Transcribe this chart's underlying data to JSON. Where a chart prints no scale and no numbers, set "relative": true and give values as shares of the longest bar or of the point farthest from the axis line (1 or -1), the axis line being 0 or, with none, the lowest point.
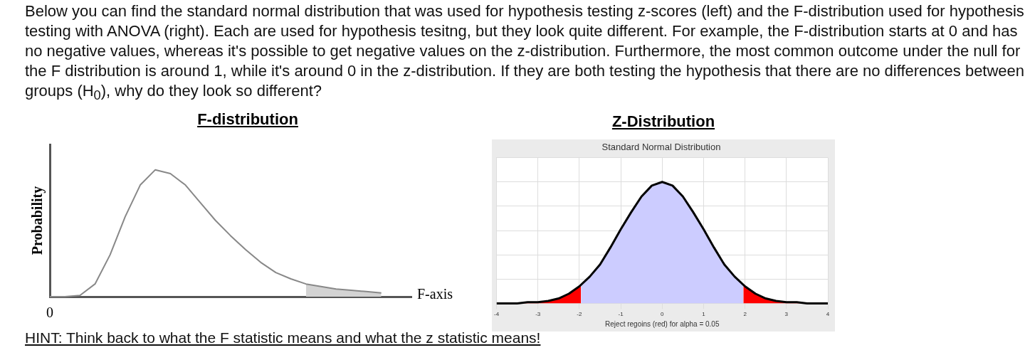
{
  "chart_data": [
    {
      "type": "line",
      "title": "F-distribution",
      "ylabel": "Probability",
      "xlabel": "F-axis",
      "relative": true,
      "grid": false,
      "legend": false,
      "categories": [
        null,
        null,
        null,
        null,
        null,
        null,
        null,
        null,
        null,
        null,
        null,
        null,
        null,
        null,
        null,
        null,
        null,
        null,
        null,
        null,
        null,
        null,
        null,
        null,
        null
      ],
      "series": [
        {
          "type": "area",
          "color": "#d3d3d3",
          "values": [
            null,
            null,
            null,
            null,
            null,
            null,
            null,
            null,
            null,
            null,
            null,
            null,
            null,
            null,
            null,
            null,
            null,
            0.1,
            0.08,
            0.06,
            0.05,
            0.04,
            0.03,
            null,
            null
          ]
        },
        {
          "color": "#888888",
          "values": [
            0,
            0,
            0.01,
            0.1,
            0.33,
            0.63,
            0.88,
            1,
            0.97,
            0.88,
            0.74,
            0.6,
            0.48,
            0.37,
            0.27,
            0.19,
            0.14,
            0.1,
            0.08,
            0.06,
            0.05,
            0.04,
            0.03,
            null,
            null
          ]
        }
      ],
      "annotations": [
        "Below you can find the standard normal distribution that was used for hypothesis testing z-scores (left) and the F-distribution used for hypothesis testing with ANOVA (right). Each are used for hypothesis tesitng, but they look quite different. For example, the F-distribution starts at 0 and has no negative values, whereas it's possible to get negative values on the z-distribution. Furthermore, the most common outcome under the null for the F distribution is around 1, while it's around 0 in the z-distribution. If they are both testing the hypothesis that there are no differences between groups (H$_{0}$), why do they look so different?",
        "0",
        "HINT: Think back to what the F statistic means and what the z statistic means!"
      ]
    },
    {
      "type": "line",
      "title": "Z-Distribution",
      "subtitle": "Standard Normal Distribution",
      "xlabel": "Reject regoins (red) for alpha = 0.05",
      "relative": true,
      "grid": true,
      "legend": false,
      "xlim": [
        -4,
        4
      ],
      "xticks": [
        -4,
        -3,
        -2,
        -1,
        0,
        1,
        2,
        3,
        4
      ],
      "series": [
        {
          "type": "area",
          "color": "#ccccff",
          "x": [
            -1.96,
            -1.75,
            -1.5,
            -1.25,
            -1,
            -0.75,
            -0.5,
            -0.25,
            0,
            0.25,
            0.5,
            0.75,
            1,
            1.25,
            1.5,
            1.75,
            1.96
          ],
          "values": [
            0.15,
            0.22,
            0.32,
            0.46,
            0.61,
            0.75,
            0.88,
            0.97,
            1,
            0.97,
            0.88,
            0.75,
            0.61,
            0.46,
            0.32,
            0.22,
            0.15
          ]
        },
        {
          "type": "area",
          "color": "#ff0000",
          "x": [
            -4,
            -3.75,
            -3.5,
            -3.25,
            -3,
            -2.75,
            -2.5,
            -2.25,
            -2,
            -1.96
          ],
          "values": [
            0,
            0,
            0,
            0.01,
            0.01,
            0.02,
            0.04,
            0.08,
            0.14,
            0.15
          ]
        },
        {
          "type": "area",
          "color": "#ff0000",
          "x": [
            1.96,
            2,
            2.25,
            2.5,
            2.75,
            3,
            3.25,
            3.5,
            3.75,
            4
          ],
          "values": [
            0.15,
            0.14,
            0.08,
            0.04,
            0.02,
            0.01,
            0.01,
            0,
            0,
            0
          ]
        },
        {
          "color": "#000000",
          "x": [
            -4,
            -3.75,
            -3.5,
            -3.25,
            -3,
            -2.75,
            -2.5,
            -2.25,
            -2,
            -1.75,
            -1.5,
            -1.25,
            -1,
            -0.75,
            -0.5,
            -0.25,
            0,
            0.25,
            0.5,
            0.75,
            1,
            1.25,
            1.5,
            1.75,
            2,
            2.25,
            2.5,
            2.75,
            3,
            3.25,
            3.5,
            3.75,
            4
          ],
          "values": [
            0,
            0,
            0,
            0.01,
            0.01,
            0.02,
            0.04,
            0.08,
            0.14,
            0.22,
            0.32,
            0.46,
            0.61,
            0.75,
            0.88,
            0.97,
            1,
            0.97,
            0.88,
            0.75,
            0.61,
            0.46,
            0.32,
            0.22,
            0.14,
            0.08,
            0.04,
            0.02,
            0.01,
            0.01,
            0,
            0,
            0
          ]
        }
      ]
    }
  ]
}
